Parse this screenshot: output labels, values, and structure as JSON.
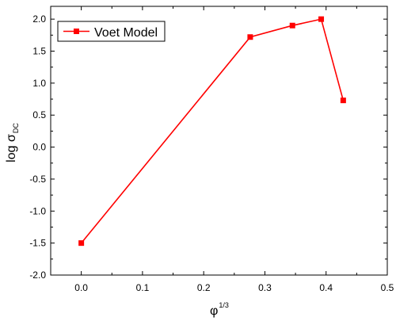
{
  "chart_data": {
    "type": "line",
    "xlabel": "φ",
    "xlabel_sup": "1/3",
    "ylabel": "log σ",
    "ylabel_sub": "DC",
    "xlim": [
      -0.05,
      0.5
    ],
    "ylim": [
      -2.0,
      2.2
    ],
    "x_ticks": [
      0.0,
      0.1,
      0.2,
      0.3,
      0.4,
      0.5
    ],
    "x_tick_labels": [
      "0.0",
      "0.1",
      "0.2",
      "0.3",
      "0.4",
      "0.5"
    ],
    "y_ticks": [
      -2.0,
      -1.5,
      -1.0,
      -0.5,
      0.0,
      0.5,
      1.0,
      1.5,
      2.0
    ],
    "y_tick_labels": [
      "-2.0",
      "-1.5",
      "-1.0",
      "-0.5",
      "0.0",
      "0.5",
      "1.0",
      "1.5",
      "2.0"
    ],
    "grid": false,
    "legend_position": "top-left",
    "series": [
      {
        "name": "Voet Model",
        "color": "#ff0000",
        "marker": "square",
        "x": [
          0.0,
          0.276,
          0.345,
          0.392,
          0.428
        ],
        "y": [
          -1.5,
          1.72,
          1.9,
          2.0,
          0.73
        ]
      }
    ]
  }
}
